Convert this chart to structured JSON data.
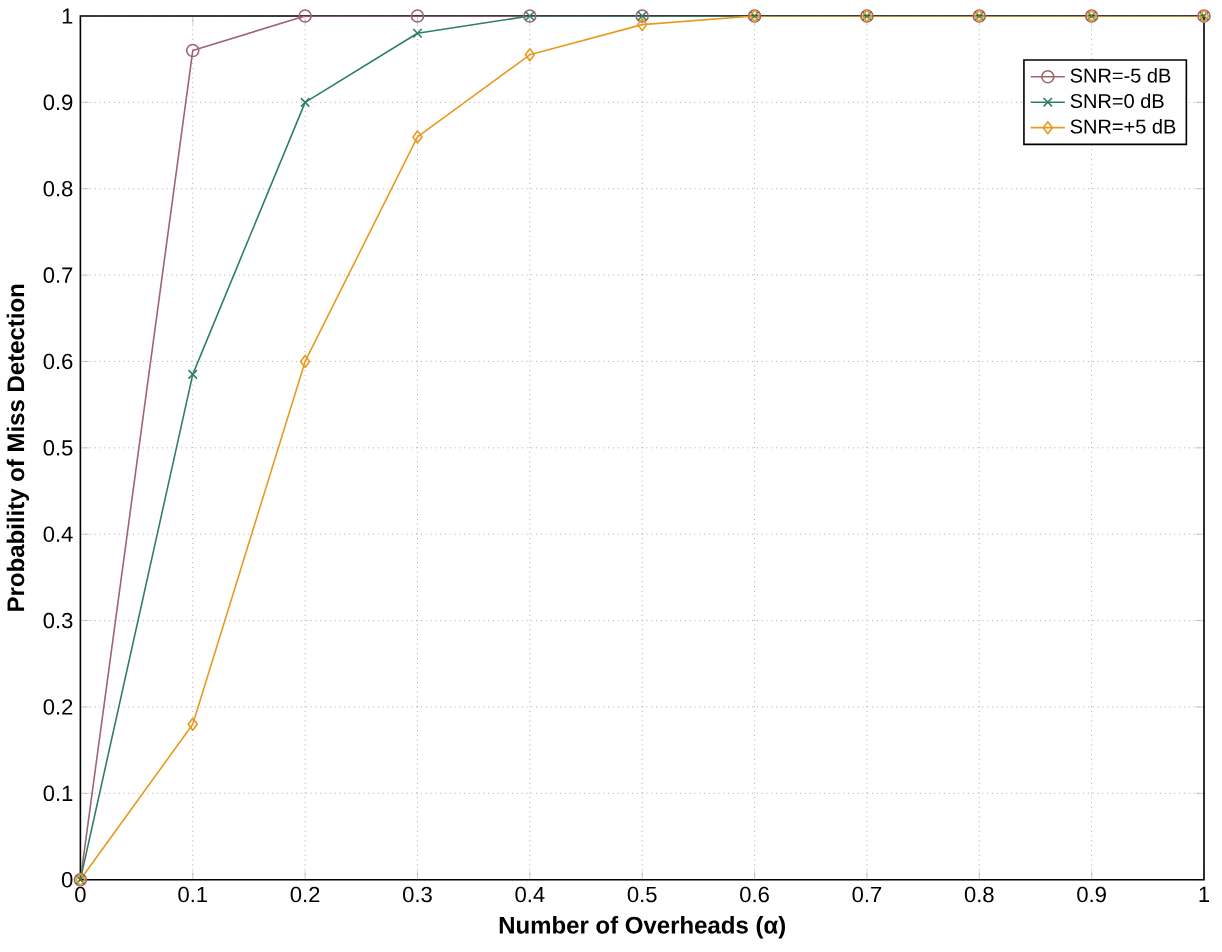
{
  "chart_data": {
    "type": "line",
    "xlabel": "Number of Overheads (α)",
    "ylabel": "Probability of Miss Detection",
    "x": [
      0,
      0.1,
      0.2,
      0.3,
      0.4,
      0.5,
      0.6,
      0.7,
      0.8,
      0.9,
      1
    ],
    "series": [
      {
        "name": "SNR=-5 dB",
        "color": "#a0646e",
        "marker": "circle",
        "values": [
          0,
          0.96,
          1,
          1,
          1,
          1,
          1,
          1,
          1,
          1,
          1
        ]
      },
      {
        "name": "SNR=0  dB",
        "color": "#2e8060",
        "marker": "cross",
        "values": [
          0,
          0.585,
          0.9,
          0.98,
          1,
          1,
          1,
          1,
          1,
          1,
          1
        ]
      },
      {
        "name": "SNR=+5 dB",
        "color": "#e89a20",
        "marker": "diamond",
        "values": [
          0,
          0.18,
          0.6,
          0.86,
          0.955,
          0.99,
          1,
          1,
          1,
          1,
          1
        ]
      }
    ],
    "xlim": [
      0,
      1
    ],
    "ylim": [
      0,
      1
    ],
    "xticks": [
      0,
      0.1,
      0.2,
      0.3,
      0.4,
      0.5,
      0.6,
      0.7,
      0.8,
      0.9,
      1
    ],
    "yticks": [
      0,
      0.1,
      0.2,
      0.3,
      0.4,
      0.5,
      0.6,
      0.7,
      0.8,
      0.9,
      1
    ],
    "grid": true,
    "legend": "top right",
    "line_style": "solid"
  }
}
